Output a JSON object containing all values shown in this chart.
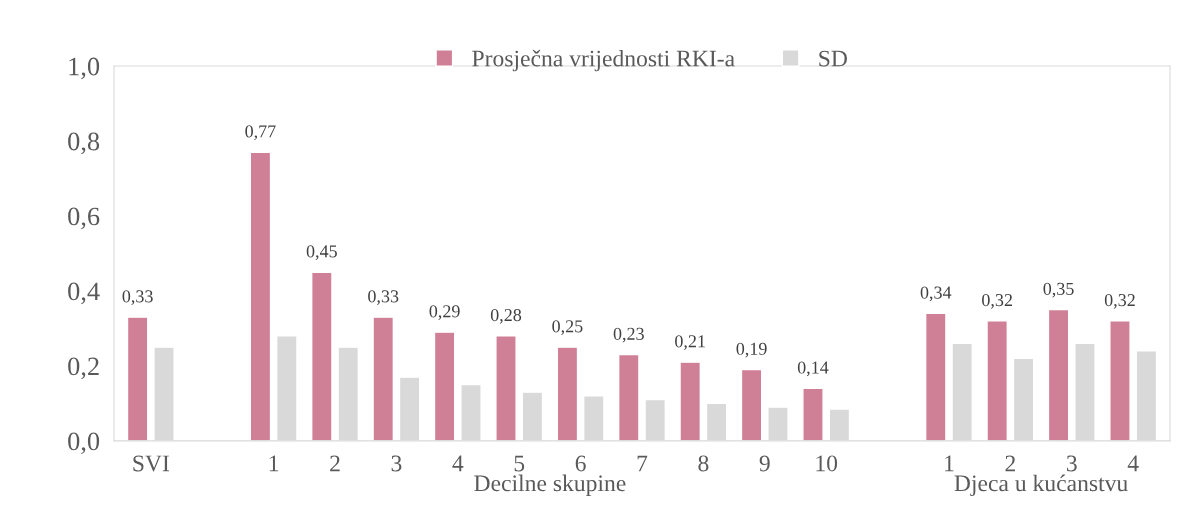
{
  "chart_data": {
    "type": "bar",
    "categories": [
      "SVI",
      null,
      "1",
      "2",
      "3",
      "4",
      "5",
      "6",
      "7",
      "8",
      "9",
      "10",
      null,
      "1",
      "2",
      "3",
      "4"
    ],
    "series": [
      {
        "name": "Prosječna vrijednosti RKI-a",
        "color": "#d08096",
        "values": [
          0.33,
          null,
          0.77,
          0.45,
          0.33,
          0.29,
          0.28,
          0.25,
          0.23,
          0.21,
          0.19,
          0.14,
          null,
          0.34,
          0.32,
          0.35,
          0.32
        ],
        "value_labels": [
          "0,33",
          null,
          "0,77",
          "0,45",
          "0,33",
          "0,29",
          "0,28",
          "0,25",
          "0,23",
          "0,21",
          "0,19",
          "0,14",
          null,
          "0,34",
          "0,32",
          "0,35",
          "0,32"
        ]
      },
      {
        "name": "SD",
        "color": "#d9d9d9",
        "values": [
          0.25,
          null,
          0.28,
          0.25,
          0.17,
          0.15,
          0.13,
          0.12,
          0.11,
          0.1,
          0.09,
          0.085,
          null,
          0.26,
          0.22,
          0.26,
          0.24
        ]
      }
    ],
    "ylim": [
      0,
      1
    ],
    "yticks": [
      {
        "value": 0,
        "label": "0,0"
      },
      {
        "value": 0.2,
        "label": "0,2"
      },
      {
        "value": 0.4,
        "label": "0,4"
      },
      {
        "value": 0.6,
        "label": "0,6"
      },
      {
        "value": 0.8,
        "label": "0,8"
      },
      {
        "value": 1,
        "label": "1,0"
      }
    ],
    "annotations": [
      "Decilne skupine",
      "Djeca u kućanstvu"
    ],
    "legend": "top",
    "grid": false
  }
}
